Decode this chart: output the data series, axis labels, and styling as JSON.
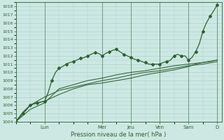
{
  "xlabel": "Pression niveau de la mer( hPa )",
  "bg_color": "#cde8e3",
  "grid_color": "#aad4cc",
  "line_color": "#2d6030",
  "spine_color": "#3a7040",
  "ylim": [
    1004,
    1018.5
  ],
  "xlim": [
    0,
    7.15
  ],
  "day_labels": [
    "Lun",
    "Mer",
    "Jeu",
    "Ven",
    "Sam",
    "D"
  ],
  "day_positions": [
    1.0,
    3.0,
    4.0,
    5.0,
    6.0,
    7.0
  ],
  "yticks": [
    1004,
    1005,
    1006,
    1007,
    1008,
    1009,
    1010,
    1011,
    1012,
    1013,
    1014,
    1015,
    1016,
    1017,
    1018
  ],
  "line1_x": [
    0.0,
    0.12,
    0.25,
    0.38,
    0.5,
    0.62,
    0.75,
    0.88,
    1.0,
    1.12,
    1.25,
    1.38,
    1.5,
    1.62,
    1.75,
    1.88,
    2.0,
    2.12,
    2.25,
    2.38,
    2.5,
    2.62,
    2.75,
    2.88,
    3.0,
    3.12,
    3.25,
    3.38,
    3.5,
    3.62,
    3.75,
    3.88,
    4.0,
    4.12,
    4.25,
    4.38,
    4.5,
    4.62,
    4.75,
    4.88,
    5.0,
    5.12,
    5.25,
    5.38,
    5.5,
    5.62,
    5.75,
    5.88,
    6.0,
    6.12,
    6.25,
    6.38,
    6.5,
    6.62,
    6.75,
    6.88,
    7.0
  ],
  "line1_y": [
    1004.0,
    1004.5,
    1005.0,
    1005.5,
    1006.0,
    1006.2,
    1006.3,
    1006.4,
    1006.5,
    1007.5,
    1009.0,
    1010.0,
    1010.5,
    1010.7,
    1011.0,
    1011.2,
    1011.3,
    1011.5,
    1011.7,
    1011.8,
    1012.0,
    1012.2,
    1012.4,
    1012.3,
    1012.0,
    1012.3,
    1012.5,
    1012.7,
    1012.8,
    1012.5,
    1012.2,
    1012.0,
    1011.8,
    1011.6,
    1011.5,
    1011.3,
    1011.2,
    1011.0,
    1011.0,
    1011.0,
    1011.0,
    1011.2,
    1011.3,
    1011.5,
    1012.0,
    1012.2,
    1012.0,
    1012.0,
    1011.5,
    1011.8,
    1012.5,
    1013.5,
    1015.0,
    1016.0,
    1016.8,
    1017.5,
    1018.2
  ],
  "line2_x": [
    0.0,
    0.25,
    0.5,
    0.75,
    1.0,
    1.5,
    2.0,
    2.5,
    3.0,
    3.5,
    4.0,
    4.5,
    5.0,
    5.5,
    6.0,
    6.25,
    6.5,
    6.75,
    7.0
  ],
  "line2_y": [
    1004.0,
    1005.0,
    1006.0,
    1006.3,
    1006.5,
    1007.3,
    1008.0,
    1008.5,
    1008.7,
    1009.0,
    1009.3,
    1009.7,
    1010.0,
    1010.3,
    1010.7,
    1011.0,
    1011.2,
    1011.3,
    1011.5
  ],
  "line3_x": [
    0.0,
    0.25,
    0.5,
    0.75,
    1.0,
    1.5,
    2.0,
    2.5,
    3.0,
    3.5,
    4.0,
    4.5,
    5.0,
    5.5,
    6.0,
    6.5,
    7.0
  ],
  "line3_y": [
    1004.0,
    1005.2,
    1006.0,
    1006.5,
    1007.0,
    1007.8,
    1008.2,
    1008.6,
    1009.0,
    1009.3,
    1009.7,
    1010.0,
    1010.2,
    1010.5,
    1010.8,
    1011.0,
    1011.3
  ],
  "line4_x": [
    0.0,
    0.5,
    1.0,
    1.5,
    2.0,
    2.5,
    3.0,
    3.5,
    4.0,
    4.5,
    5.0,
    5.5,
    6.0,
    6.5,
    7.0
  ],
  "line4_y": [
    1004.0,
    1005.5,
    1006.3,
    1008.0,
    1008.5,
    1009.0,
    1009.3,
    1009.7,
    1010.0,
    1010.2,
    1010.5,
    1010.8,
    1011.0,
    1011.2,
    1011.5
  ]
}
